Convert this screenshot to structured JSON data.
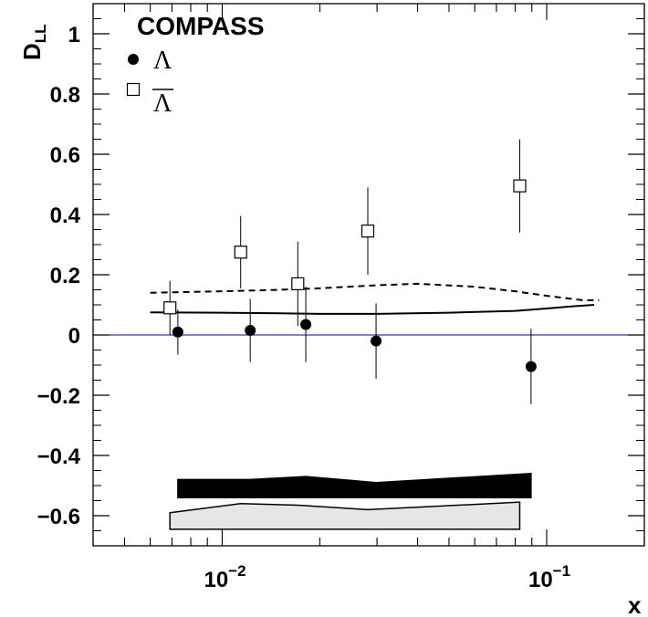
{
  "chart_data": {
    "type": "scatter",
    "title": "COMPASS",
    "xlabel": "x",
    "ylabel": "D_LL",
    "ylabel_main": "D",
    "ylabel_sub": "LL",
    "x_scale": "log",
    "xlim": [
      0.004,
      0.2
    ],
    "ylim": [
      -0.7,
      1.1
    ],
    "yticks": [
      -0.6,
      -0.4,
      -0.2,
      0,
      0.2,
      0.4,
      0.6,
      0.8,
      1
    ],
    "ytick_labels": [
      "−0.6",
      "−0.4",
      "−0.2",
      "0",
      "0.2",
      "0.4",
      "0.6",
      "0.8",
      "1"
    ],
    "xtick_labels": [
      {
        "value": 0.01,
        "base": "10",
        "exp": "−2"
      },
      {
        "value": 0.1,
        "base": "10",
        "exp": "−1"
      }
    ],
    "grid": false,
    "legend_placement": "top-left",
    "series": [
      {
        "name": "Λ",
        "marker": "filled-circle",
        "color": "#000000",
        "x": [
          0.0073,
          0.0122,
          0.0181,
          0.0298,
          0.0895
        ],
        "y": [
          0.01,
          0.015,
          0.035,
          -0.02,
          -0.105
        ],
        "err": [
          0.075,
          0.105,
          0.125,
          0.125,
          0.125
        ]
      },
      {
        "name": "Λ̅",
        "label_text": "Λ",
        "label_overline": true,
        "marker": "open-square",
        "color": "#000000",
        "x": [
          0.0069,
          0.0114,
          0.0171,
          0.0281,
          0.0826
        ],
        "y": [
          0.09,
          0.275,
          0.17,
          0.345,
          0.495
        ],
        "err": [
          0.09,
          0.12,
          0.14,
          0.145,
          0.155
        ]
      }
    ],
    "curves": [
      {
        "style": "dashed",
        "color": "#000000",
        "x": [
          0.006,
          0.01,
          0.015,
          0.02,
          0.03,
          0.04,
          0.06,
          0.08,
          0.1,
          0.13,
          0.145
        ],
        "y": [
          0.14,
          0.145,
          0.15,
          0.155,
          0.165,
          0.17,
          0.16,
          0.145,
          0.13,
          0.115,
          0.115
        ]
      },
      {
        "style": "solid",
        "color": "#000000",
        "x": [
          0.006,
          0.01,
          0.015,
          0.02,
          0.03,
          0.05,
          0.08,
          0.1,
          0.12,
          0.14
        ],
        "y": [
          0.075,
          0.074,
          0.072,
          0.07,
          0.07,
          0.074,
          0.08,
          0.088,
          0.095,
          0.1
        ]
      }
    ],
    "zero_line": {
      "y": 0,
      "color": "#0000aa"
    },
    "systematic_bands": [
      {
        "fill": "#000000",
        "edge": "#000000",
        "x": [
          0.0073,
          0.0122,
          0.0181,
          0.0298,
          0.0895
        ],
        "upper": [
          -0.48,
          -0.48,
          -0.47,
          -0.49,
          -0.46
        ],
        "lower": [
          -0.54,
          -0.54,
          -0.54,
          -0.54,
          -0.54
        ]
      },
      {
        "fill": "#e6e6e6",
        "edge": "#000000",
        "x": [
          0.0069,
          0.0114,
          0.0171,
          0.0281,
          0.0826
        ],
        "upper": [
          -0.59,
          -0.56,
          -0.565,
          -0.58,
          -0.555
        ],
        "lower": [
          -0.645,
          -0.645,
          -0.645,
          -0.645,
          -0.645
        ]
      }
    ]
  }
}
